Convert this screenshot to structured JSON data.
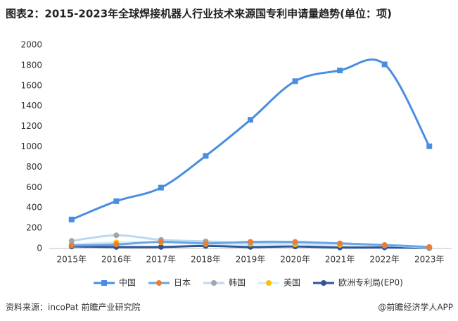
{
  "chart_data": {
    "type": "line",
    "title": "图表2：2015-2023年全球焊接机器人行业技术来源国专利申请量趋势(单位：项)",
    "source": "资料来源：incoPat 前瞻产业研究院",
    "credit": "@前瞻经济学人APP",
    "categories": [
      "2015年",
      "2016年",
      "2017年",
      "2018年",
      "2019年",
      "2020年",
      "2021年",
      "2022年",
      "2023年"
    ],
    "ylim": [
      0,
      2000
    ],
    "yticks": [
      0,
      200,
      400,
      600,
      800,
      1000,
      1200,
      1400,
      1600,
      1800,
      2000
    ],
    "smooth": true,
    "series": [
      {
        "name": "中国",
        "color": "#4a8ee0",
        "marker_color": "#4a8ee0",
        "marker": "square",
        "values": [
          285,
          465,
          598,
          910,
          1265,
          1645,
          1750,
          1810,
          1005
        ]
      },
      {
        "name": "日本",
        "color": "#6aa6e6",
        "marker_color": "#ed7d31",
        "marker": "circle",
        "values": [
          30,
          40,
          65,
          50,
          65,
          65,
          50,
          35,
          15
        ]
      },
      {
        "name": "韩国",
        "color": "#bcd9f4",
        "marker_color": "#a5a5a5",
        "marker": "circle",
        "values": [
          75,
          130,
          85,
          70,
          55,
          55,
          50,
          30,
          15
        ]
      },
      {
        "name": "美国",
        "color": "#d6ecf9",
        "marker_color": "#ffc000",
        "marker": "circle",
        "values": [
          40,
          60,
          60,
          45,
          45,
          40,
          35,
          30,
          10
        ]
      },
      {
        "name": "欧洲专利局(EP0)",
        "color": "#2f5597",
        "marker_color": "#2f5597",
        "marker": "circle",
        "values": [
          20,
          15,
          15,
          25,
          15,
          20,
          10,
          10,
          5
        ]
      }
    ]
  }
}
